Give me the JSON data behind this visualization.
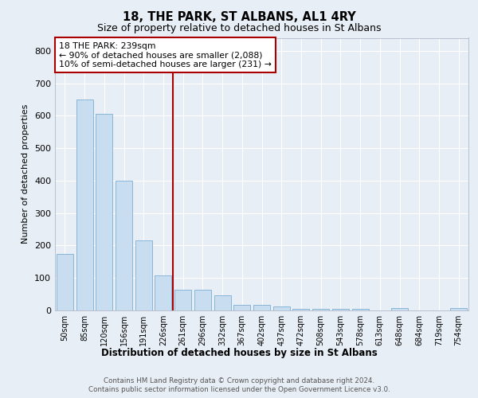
{
  "title1": "18, THE PARK, ST ALBANS, AL1 4RY",
  "title2": "Size of property relative to detached houses in St Albans",
  "xlabel": "Distribution of detached houses by size in St Albans",
  "ylabel": "Number of detached properties",
  "categories": [
    "50sqm",
    "85sqm",
    "120sqm",
    "156sqm",
    "191sqm",
    "226sqm",
    "261sqm",
    "296sqm",
    "332sqm",
    "367sqm",
    "402sqm",
    "437sqm",
    "472sqm",
    "508sqm",
    "543sqm",
    "578sqm",
    "613sqm",
    "648sqm",
    "684sqm",
    "719sqm",
    "754sqm"
  ],
  "values": [
    175,
    650,
    607,
    400,
    215,
    107,
    63,
    63,
    47,
    17,
    17,
    12,
    6,
    6,
    5,
    5,
    0,
    8,
    0,
    0,
    7
  ],
  "bar_color": "#c8ddf0",
  "bar_edge_color": "#7bafd4",
  "vline_x_index": 6,
  "vline_color": "#aa0000",
  "annotation_title": "18 THE PARK: 239sqm",
  "annotation_line1": "← 90% of detached houses are smaller (2,088)",
  "annotation_line2": "10% of semi-detached houses are larger (231) →",
  "annotation_box_color": "#ffffff",
  "annotation_box_edge": "#aa0000",
  "ylim": [
    0,
    840
  ],
  "yticks": [
    0,
    100,
    200,
    300,
    400,
    500,
    600,
    700,
    800
  ],
  "footer1": "Contains HM Land Registry data © Crown copyright and database right 2024.",
  "footer2": "Contains public sector information licensed under the Open Government Licence v3.0.",
  "bg_color": "#e8eef5",
  "plot_bg_color": "#e8eef5",
  "grid_color": "#ffffff"
}
